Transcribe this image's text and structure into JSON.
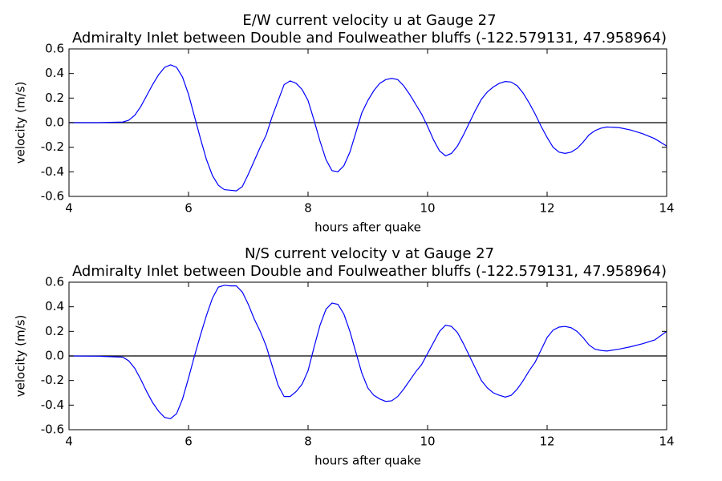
{
  "chart_data": [
    {
      "type": "line",
      "title": "E/W current velocity u at Gauge 27",
      "subtitle": "Admiralty Inlet between Double and Foulweather bluffs  (-122.579131, 47.958964)",
      "x_label": "hours after quake",
      "y_label": "velocity (m/s)",
      "xlim": [
        4,
        14
      ],
      "xticks": [
        4,
        6,
        8,
        10,
        12,
        14
      ],
      "ylim": [
        -0.6,
        0.6
      ],
      "yticks": [
        -0.6,
        -0.4,
        -0.2,
        {
          "value": 0,
          "label": "0.0"
        },
        0.2,
        0.4,
        0.6
      ],
      "grid": false,
      "series": [
        {
          "name": "u",
          "color": "#0000ff",
          "x": [
            4.0,
            4.5,
            4.9,
            5.0,
            5.1,
            5.2,
            5.3,
            5.4,
            5.5,
            5.6,
            5.7,
            5.8,
            5.9,
            6.0,
            6.1,
            6.2,
            6.3,
            6.4,
            6.5,
            6.6,
            6.7,
            6.8,
            6.9,
            7.0,
            7.1,
            7.2,
            7.3,
            7.4,
            7.5,
            7.6,
            7.7,
            7.8,
            7.9,
            8.0,
            8.1,
            8.2,
            8.3,
            8.4,
            8.5,
            8.6,
            8.7,
            8.8,
            8.9,
            9.0,
            9.1,
            9.2,
            9.3,
            9.4,
            9.5,
            9.6,
            9.7,
            9.8,
            9.9,
            10.0,
            10.1,
            10.2,
            10.3,
            10.4,
            10.5,
            10.6,
            10.7,
            10.8,
            10.9,
            11.0,
            11.1,
            11.2,
            11.3,
            11.4,
            11.5,
            11.6,
            11.7,
            11.8,
            11.9,
            12.0,
            12.1,
            12.2,
            12.3,
            12.4,
            12.5,
            12.6,
            12.7,
            12.8,
            12.9,
            13.0,
            13.2,
            13.4,
            13.6,
            13.8,
            14.0
          ],
          "values": [
            0,
            0,
            0.005,
            0.02,
            0.06,
            0.13,
            0.22,
            0.31,
            0.39,
            0.45,
            0.47,
            0.45,
            0.37,
            0.23,
            0.05,
            -0.13,
            -0.3,
            -0.43,
            -0.51,
            -0.545,
            -0.55,
            -0.555,
            -0.52,
            -0.42,
            -0.31,
            -0.2,
            -0.1,
            0.05,
            0.18,
            0.31,
            0.34,
            0.32,
            0.27,
            0.18,
            0.02,
            -0.15,
            -0.3,
            -0.39,
            -0.4,
            -0.35,
            -0.24,
            -0.08,
            0.08,
            0.18,
            0.26,
            0.32,
            0.35,
            0.36,
            0.35,
            0.3,
            0.23,
            0.15,
            0.07,
            -0.03,
            -0.14,
            -0.23,
            -0.27,
            -0.25,
            -0.19,
            -0.1,
            0.0,
            0.1,
            0.19,
            0.25,
            0.29,
            0.32,
            0.335,
            0.33,
            0.3,
            0.24,
            0.16,
            0.07,
            -0.03,
            -0.12,
            -0.2,
            -0.24,
            -0.25,
            -0.24,
            -0.21,
            -0.16,
            -0.1,
            -0.065,
            -0.045,
            -0.035,
            -0.04,
            -0.06,
            -0.09,
            -0.13,
            -0.19
          ]
        }
      ]
    },
    {
      "type": "line",
      "title": "N/S current velocity v at Gauge 27",
      "subtitle": "Admiralty Inlet between Double and Foulweather bluffs  (-122.579131, 47.958964)",
      "x_label": "hours after quake",
      "y_label": "velocity (m/s)",
      "xlim": [
        4,
        14
      ],
      "xticks": [
        4,
        6,
        8,
        10,
        12,
        14
      ],
      "ylim": [
        -0.6,
        0.6
      ],
      "yticks": [
        -0.6,
        -0.4,
        -0.2,
        {
          "value": 0,
          "label": "0.0"
        },
        0.2,
        0.4,
        0.6
      ],
      "grid": false,
      "series": [
        {
          "name": "v",
          "color": "#0000ff",
          "x": [
            4.0,
            4.5,
            4.9,
            5.0,
            5.1,
            5.2,
            5.3,
            5.4,
            5.5,
            5.6,
            5.7,
            5.8,
            5.9,
            6.0,
            6.1,
            6.2,
            6.3,
            6.4,
            6.5,
            6.6,
            6.7,
            6.8,
            6.9,
            7.0,
            7.1,
            7.2,
            7.3,
            7.4,
            7.5,
            7.6,
            7.7,
            7.8,
            7.9,
            8.0,
            8.1,
            8.2,
            8.3,
            8.4,
            8.5,
            8.6,
            8.7,
            8.8,
            8.9,
            9.0,
            9.1,
            9.2,
            9.3,
            9.4,
            9.5,
            9.6,
            9.7,
            9.8,
            9.9,
            10.0,
            10.1,
            10.2,
            10.3,
            10.4,
            10.5,
            10.6,
            10.7,
            10.8,
            10.9,
            11.0,
            11.1,
            11.2,
            11.3,
            11.4,
            11.5,
            11.6,
            11.7,
            11.8,
            11.9,
            12.0,
            12.1,
            12.2,
            12.3,
            12.4,
            12.5,
            12.6,
            12.7,
            12.8,
            12.9,
            13.0,
            13.2,
            13.4,
            13.6,
            13.8,
            14.0
          ],
          "values": [
            0,
            -0.002,
            -0.01,
            -0.04,
            -0.1,
            -0.19,
            -0.29,
            -0.38,
            -0.45,
            -0.5,
            -0.51,
            -0.47,
            -0.35,
            -0.18,
            0.0,
            0.17,
            0.33,
            0.47,
            0.56,
            0.575,
            0.57,
            0.57,
            0.52,
            0.42,
            0.3,
            0.2,
            0.08,
            -0.08,
            -0.24,
            -0.33,
            -0.33,
            -0.29,
            -0.23,
            -0.12,
            0.07,
            0.25,
            0.38,
            0.43,
            0.42,
            0.34,
            0.2,
            0.03,
            -0.14,
            -0.26,
            -0.32,
            -0.35,
            -0.37,
            -0.365,
            -0.33,
            -0.27,
            -0.2,
            -0.13,
            -0.07,
            0.02,
            0.11,
            0.2,
            0.25,
            0.24,
            0.19,
            0.1,
            0.0,
            -0.1,
            -0.2,
            -0.26,
            -0.3,
            -0.32,
            -0.335,
            -0.32,
            -0.27,
            -0.2,
            -0.12,
            -0.05,
            0.05,
            0.15,
            0.21,
            0.235,
            0.24,
            0.23,
            0.2,
            0.15,
            0.09,
            0.055,
            0.045,
            0.04,
            0.055,
            0.075,
            0.1,
            0.13,
            0.2
          ]
        }
      ]
    }
  ]
}
